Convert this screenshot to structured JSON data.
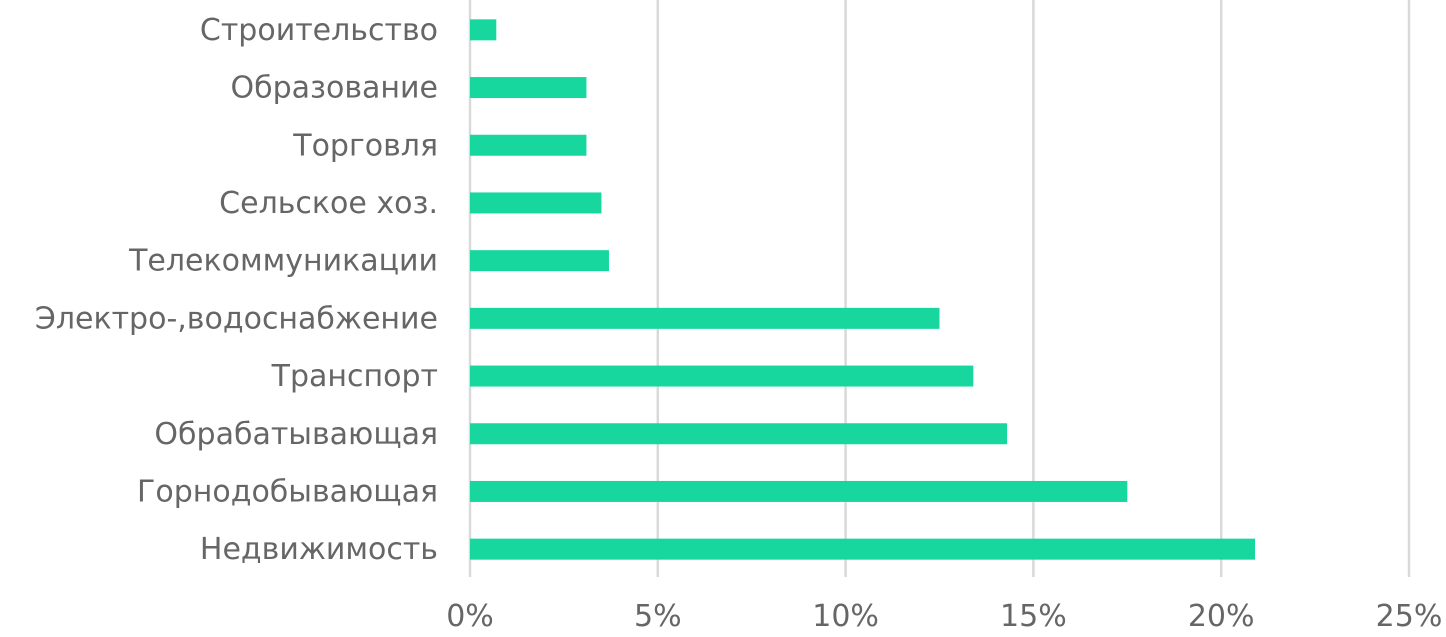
{
  "chart_data": {
    "type": "bar",
    "orientation": "horizontal",
    "title": "",
    "xlabel": "",
    "ylabel": "",
    "categories": [
      "Недвижимость",
      "Горнодобывающая",
      "Обрабатывающая",
      "Транспорт ",
      "Электро-,водоснабжение",
      "Телекоммуникации",
      "Сельское хоз.",
      "Торговля",
      "Образование",
      "Строительство"
    ],
    "values": [
      20.9,
      17.5,
      14.3,
      13.4,
      12.5,
      3.7,
      3.5,
      3.1,
      3.1,
      0.7
    ],
    "xlim": [
      0,
      25
    ],
    "xticks": [
      0,
      5,
      10,
      15,
      20,
      25
    ],
    "xtick_labels": [
      "0%",
      "5%",
      "10%",
      "15%",
      "20%",
      "25%"
    ],
    "grid": "vertical",
    "legend": "none",
    "colors": {
      "bar": "#17D79F",
      "label": "#666666",
      "grid": "#D9D9D9"
    }
  }
}
